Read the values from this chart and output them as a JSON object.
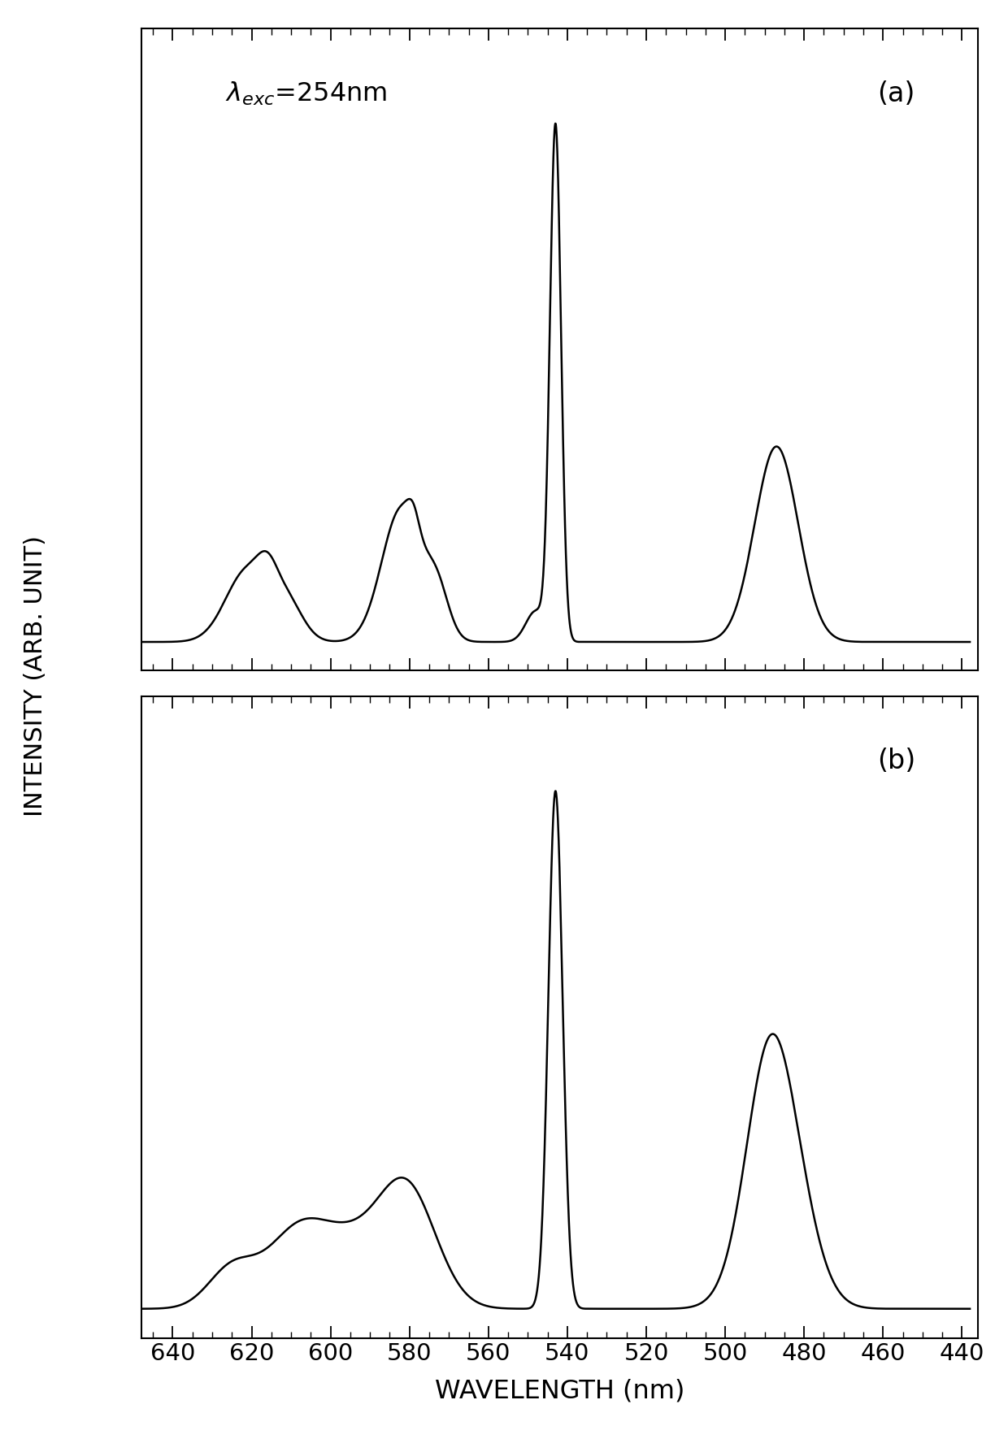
{
  "title": "",
  "xlabel": "WAVELENGTH (nm)",
  "ylabel": "INTENSITY (ARB. UNIT)",
  "label_a": "(a)",
  "label_b": "(b)",
  "background_color": "#ffffff",
  "line_color": "#000000",
  "line_width": 1.8,
  "figure_width": 12.4,
  "figure_height": 17.71,
  "dpi": 100,
  "major_ticks": [
    640,
    620,
    600,
    580,
    560,
    540,
    520,
    500,
    480,
    460,
    440
  ]
}
